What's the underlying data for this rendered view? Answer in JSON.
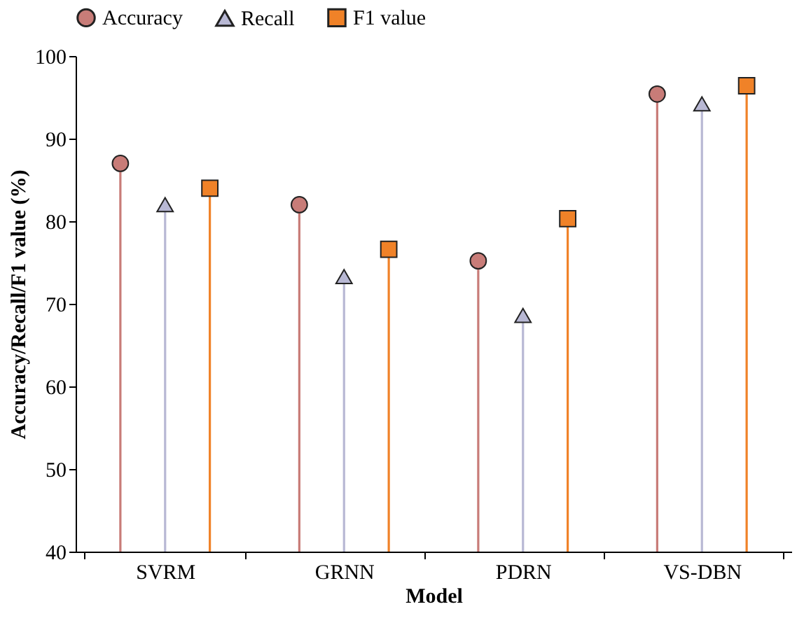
{
  "chart_data": {
    "type": "lollipop",
    "xlabel": "Model",
    "ylabel": "Accuracy/Recall/F1 value (%)",
    "categories": [
      "SVRM",
      "GRNN",
      "PDRN",
      "VS-DBN"
    ],
    "series": [
      {
        "name": "Accuracy",
        "color": "#c87c78",
        "marker": "circle",
        "values": [
          87.0,
          82.0,
          75.2,
          95.4
        ]
      },
      {
        "name": "Recall",
        "color": "#b8b8d4",
        "marker": "triangle",
        "values": [
          82.0,
          73.3,
          68.6,
          94.2
        ]
      },
      {
        "name": "F1 value",
        "color": "#f08228",
        "marker": "square",
        "values": [
          84.0,
          76.6,
          80.3,
          96.4
        ]
      }
    ],
    "ylim": [
      40,
      100
    ],
    "yticks": [
      40,
      50,
      60,
      70,
      80,
      90,
      100
    ],
    "legend": "top",
    "grid": false
  }
}
